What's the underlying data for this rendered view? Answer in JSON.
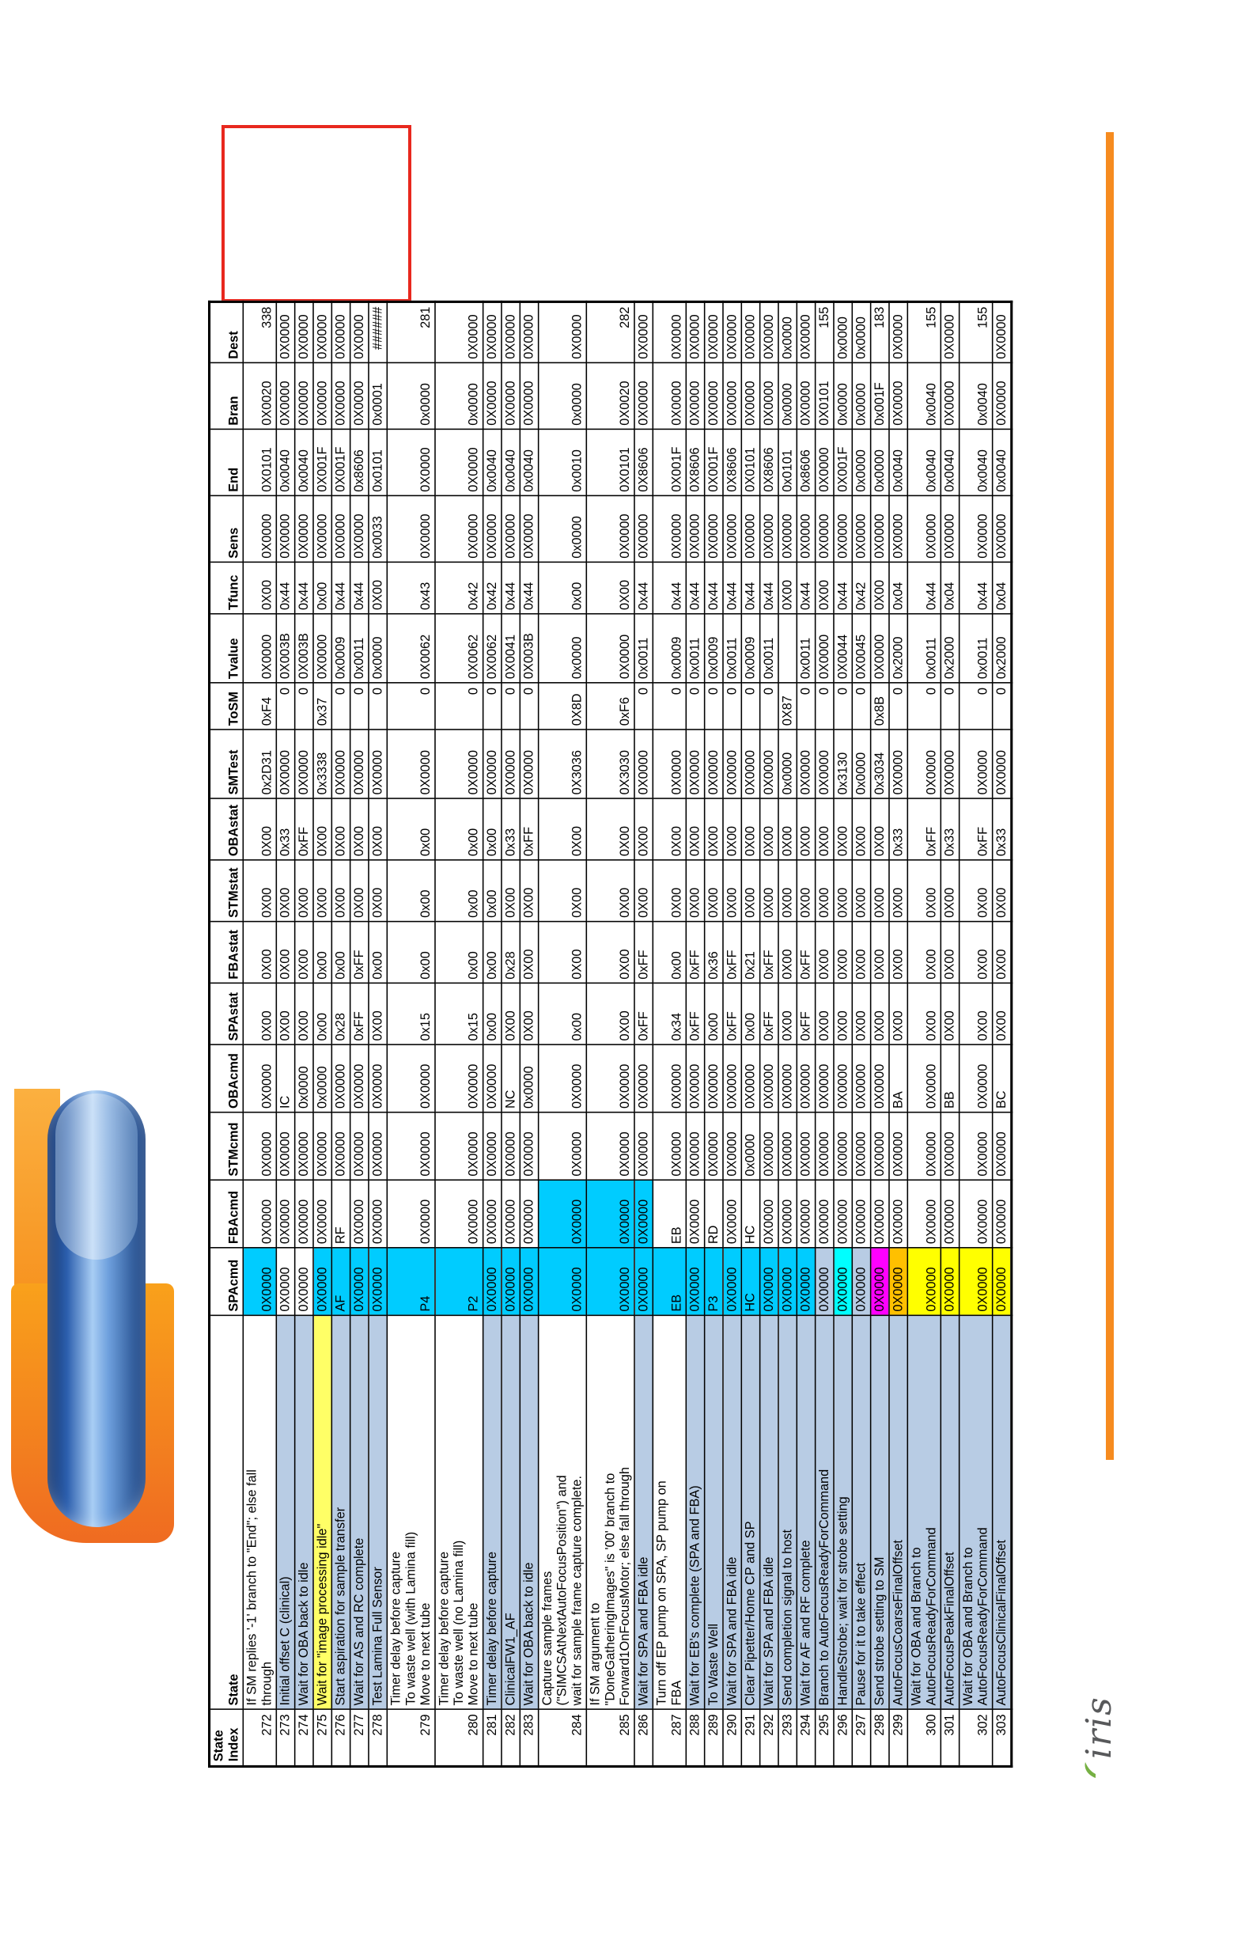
{
  "logo": {
    "wordmark": "iris"
  },
  "colors": {
    "white": "#ffffff",
    "lightblue": "#b8cce4",
    "cyan": "#00ccff",
    "aqua": "#00ffff",
    "magenta": "#ff00ff",
    "orange": "#ffc000",
    "yellow": "#ffff00",
    "paleyellow": "#ffff66",
    "accent_orange": "#f68b1f",
    "annotation_red": "#e8281e"
  },
  "table": {
    "headers": [
      "State\nIndex",
      "State",
      "SPAcmd",
      "FBAcmd",
      "STMcmd",
      "OBAcmd",
      "SPAstat",
      "FBAstat",
      "STMstat",
      "OBAstat",
      "SMTest",
      "ToSM",
      "Tvalue",
      "Tfunc",
      "Sens",
      "End",
      "Bran",
      "Dest"
    ],
    "rows": [
      {
        "index": "272",
        "state": "If SM replies '-1' branch to \"End\"; else fall\nthrough",
        "state_bg": "white",
        "spacmd_bg": "cyan",
        "fbacmd_bg": "white",
        "values": [
          "0X0000",
          "0X0000",
          "0X0000",
          "0X0000",
          "0X00",
          "0X00",
          "0X00",
          "0X00",
          "0x2D31",
          "0xF4",
          "0X0000",
          "0X00",
          "0X0000",
          "0X0101",
          "0X0020",
          "338"
        ]
      },
      {
        "index": "273",
        "state": "Initial offset C (clinical)",
        "state_bg": "lightblue",
        "spacmd_bg": "white",
        "fbacmd_bg": "white",
        "values": [
          "0X0000",
          "0X0000",
          "0X0000",
          "IC",
          "0X00",
          "0X00",
          "0X00",
          "0x33",
          "0X0000",
          "0",
          "0X003B",
          "0x44",
          "0X0000",
          "0x0040",
          "0X0000",
          "0X0000"
        ]
      },
      {
        "index": "274",
        "state": "Wait for OBA back to idle",
        "state_bg": "lightblue",
        "spacmd_bg": "white",
        "fbacmd_bg": "white",
        "values": [
          "0X0000",
          "0X0000",
          "0X0000",
          "0x0000",
          "0X00",
          "0X00",
          "0X00",
          "0xFF",
          "0X0000",
          "0",
          "0X003B",
          "0x44",
          "0X0000",
          "0x0040",
          "0X0000",
          "0X0000"
        ]
      },
      {
        "index": "275",
        "state": "Wait for \"image processing idle\"",
        "state_bg": "paleyellow",
        "spacmd_bg": "cyan",
        "fbacmd_bg": "white",
        "values": [
          "0X0000",
          "0X0000",
          "0X0000",
          "0x0000",
          "0x00",
          "0x00",
          "0X00",
          "0X00",
          "0x3338",
          "0x37",
          "0X0000",
          "0x00",
          "0X0000",
          "0X001F",
          "0X0000",
          "0X0000"
        ]
      },
      {
        "index": "276",
        "state": "Start aspiration for sample transfer",
        "state_bg": "lightblue",
        "spacmd_bg": "cyan",
        "fbacmd_bg": "white",
        "values": [
          "AF",
          "RF",
          "0X0000",
          "0X0000",
          "0x28",
          "0x00",
          "0X00",
          "0X00",
          "0X0000",
          "0",
          "0x0009",
          "0x44",
          "0X0000",
          "0X001F",
          "0X0000",
          "0X0000"
        ]
      },
      {
        "index": "277",
        "state": "Wait for AS and RC complete",
        "state_bg": "lightblue",
        "spacmd_bg": "cyan",
        "fbacmd_bg": "white",
        "values": [
          "0X0000",
          "0X0000",
          "0X0000",
          "0X0000",
          "0xFF",
          "0xFF",
          "0X00",
          "0X00",
          "0X0000",
          "0",
          "0x0011",
          "0x44",
          "0X0000",
          "0x8606",
          "0X0000",
          "0X0000"
        ]
      },
      {
        "index": "278",
        "state": "Test Lamina Full Sensor",
        "state_bg": "lightblue",
        "spacmd_bg": "cyan",
        "fbacmd_bg": "white",
        "values": [
          "0X0000",
          "0X0000",
          "0X0000",
          "0X0000",
          "0X00",
          "0x00",
          "0X00",
          "0X00",
          "0X0000",
          "0",
          "0x0000",
          "0X00",
          "0x0033",
          "0x0101",
          "0x0001",
          "######"
        ]
      },
      {
        "index": "279",
        "state": "Timer delay before capture\nTo waste well (with Lamina fill)\nMove to next tube",
        "state_bg": "white",
        "spacmd_bg": "cyan",
        "fbacmd_bg": "white",
        "values": [
          "P4",
          "0X0000",
          "0X0000",
          "0X0000",
          "0x15",
          "0x00",
          "0x00",
          "0x00",
          "0X0000",
          "0",
          "0X0062",
          "0x43",
          "0X0000",
          "0X0000",
          "0x0000",
          "281"
        ]
      },
      {
        "index": "280",
        "state": "Timer delay before capture\nTo waste well (no Lamina fill)\nMove to next tube",
        "state_bg": "white",
        "spacmd_bg": "cyan",
        "fbacmd_bg": "white",
        "values": [
          "P2",
          "0X0000",
          "0X0000",
          "0X0000",
          "0x15",
          "0x00",
          "0x00",
          "0x00",
          "0X0000",
          "0",
          "0X0062",
          "0x42",
          "0X0000",
          "0X0000",
          "0x0000",
          "0X0000"
        ]
      },
      {
        "index": "281",
        "state": "Timer delay before capture",
        "state_bg": "lightblue",
        "spacmd_bg": "cyan",
        "fbacmd_bg": "white",
        "values": [
          "0X0000",
          "0X0000",
          "0X0000",
          "0X0000",
          "0x00",
          "0x00",
          "0x00",
          "0x00",
          "0X0000",
          "0",
          "0X0062",
          "0x42",
          "0X0000",
          "0x0040",
          "0X0000",
          "0X0000"
        ]
      },
      {
        "index": "282",
        "state": "ClinicalFW1_AF",
        "state_bg": "lightblue",
        "spacmd_bg": "cyan",
        "fbacmd_bg": "white",
        "values": [
          "0X0000",
          "0X0000",
          "0X0000",
          "NC",
          "0X00",
          "0x28",
          "0X00",
          "0x33",
          "0X0000",
          "0",
          "0X0041",
          "0x44",
          "0X0000",
          "0x0040",
          "0X0000",
          "0X0000"
        ]
      },
      {
        "index": "283",
        "state": "Wait for OBA back to idle",
        "state_bg": "lightblue",
        "spacmd_bg": "cyan",
        "fbacmd_bg": "white",
        "values": [
          "0X0000",
          "0X0000",
          "0X0000",
          "0x0000",
          "0X00",
          "0X00",
          "0X00",
          "0xFF",
          "0X0000",
          "0",
          "0X003B",
          "0x44",
          "0X0000",
          "0x0040",
          "0X0000",
          "0X0000"
        ]
      },
      {
        "index": "284",
        "state": "Capture sample frames\n(\"SIMCSAtNextAutoFocusPosition\") and\nwait for sample frame capture complete.",
        "state_bg": "white",
        "spacmd_bg": "cyan",
        "fbacmd_bg": "cyan",
        "values": [
          "0X0000",
          "0X0000",
          "0X0000",
          "0X0000",
          "0x00",
          "0X00",
          "0X00",
          "0X00",
          "0X3036",
          "0X8D",
          "0x0000",
          "0x00",
          "0x0000",
          "0x0010",
          "0x0000",
          "0X0000"
        ]
      },
      {
        "index": "285",
        "state": "If SM argument to\n\"DoneGatheringImages\" is '00' branch to\nForward1OnFocusMotor; else fall through",
        "state_bg": "white",
        "spacmd_bg": "cyan",
        "fbacmd_bg": "cyan",
        "values": [
          "0X0000",
          "0X0000",
          "0X0000",
          "0X0000",
          "0X00",
          "0X00",
          "0X00",
          "0X00",
          "0X3030",
          "0xF6",
          "0X0000",
          "0X00",
          "0X0000",
          "0X0101",
          "0X0020",
          "282"
        ]
      },
      {
        "index": "286",
        "state": "Wait for SPA and FBA idle",
        "state_bg": "lightblue",
        "spacmd_bg": "cyan",
        "fbacmd_bg": "cyan",
        "values": [
          "0X0000",
          "0X0000",
          "0X0000",
          "0X0000",
          "0xFF",
          "0xFF",
          "0X00",
          "0X00",
          "0X0000",
          "0",
          "0x0011",
          "0x44",
          "0X0000",
          "0X8606",
          "0X0000",
          "0X0000"
        ]
      },
      {
        "index": "287",
        "state": "Turn off EP pump on SPA, SP pump on\nFBA",
        "state_bg": "white",
        "spacmd_bg": "cyan",
        "fbacmd_bg": "white",
        "values": [
          "EB",
          "EB",
          "0X0000",
          "0X0000",
          "0x34",
          "0x00",
          "0X00",
          "0X00",
          "0X0000",
          "0",
          "0x0009",
          "0x44",
          "0X0000",
          "0X001F",
          "0X0000",
          "0X0000"
        ]
      },
      {
        "index": "288",
        "state": "Wait for EB's complete (SPA and FBA)",
        "state_bg": "lightblue",
        "spacmd_bg": "cyan",
        "fbacmd_bg": "white",
        "values": [
          "0X0000",
          "0X0000",
          "0X0000",
          "0X0000",
          "0xFF",
          "0xFF",
          "0X00",
          "0X00",
          "0X0000",
          "0",
          "0x0011",
          "0x44",
          "0X0000",
          "0X8606",
          "0X0000",
          "0X0000"
        ]
      },
      {
        "index": "289",
        "state": "To Waste Well",
        "state_bg": "lightblue",
        "spacmd_bg": "cyan",
        "fbacmd_bg": "white",
        "values": [
          "P3",
          "RD",
          "0X0000",
          "0X0000",
          "0x00",
          "0x36",
          "0X00",
          "0X00",
          "0X0000",
          "0",
          "0x0009",
          "0x44",
          "0X0000",
          "0X001F",
          "0X0000",
          "0X0000"
        ]
      },
      {
        "index": "290",
        "state": "Wait for SPA and FBA idle",
        "state_bg": "lightblue",
        "spacmd_bg": "cyan",
        "fbacmd_bg": "white",
        "values": [
          "0X0000",
          "0X0000",
          "0X0000",
          "0X0000",
          "0xFF",
          "0xFF",
          "0X00",
          "0X00",
          "0X0000",
          "0",
          "0x0011",
          "0x44",
          "0X0000",
          "0X8606",
          "0X0000",
          "0X0000"
        ]
      },
      {
        "index": "291",
        "state": "Clear Pipetter/Home CP and SP",
        "state_bg": "lightblue",
        "spacmd_bg": "cyan",
        "fbacmd_bg": "white",
        "values": [
          "HC",
          "HC",
          "0x0000",
          "0X0000",
          "0x00",
          "0x21",
          "0X00",
          "0X00",
          "0X0000",
          "0",
          "0x0009",
          "0x44",
          "0X0000",
          "0X0101",
          "0X0000",
          "0X0000"
        ]
      },
      {
        "index": "292",
        "state": "Wait for SPA and FBA idle",
        "state_bg": "lightblue",
        "spacmd_bg": "cyan",
        "fbacmd_bg": "white",
        "values": [
          "0X0000",
          "0X0000",
          "0X0000",
          "0X0000",
          "0xFF",
          "0xFF",
          "0X00",
          "0X00",
          "0X0000",
          "0",
          "0x0011",
          "0x44",
          "0X0000",
          "0X8606",
          "0X0000",
          "0X0000"
        ]
      },
      {
        "index": "293",
        "state": "Send completion signal to host",
        "state_bg": "lightblue",
        "spacmd_bg": "cyan",
        "fbacmd_bg": "white",
        "values": [
          "0X0000",
          "0X0000",
          "0X0000",
          "0X0000",
          "0X00",
          "0X00",
          "0X00",
          "0X00",
          "0x0000",
          "0X87",
          "",
          "0X00",
          "0X0000",
          "0x0101",
          "0x0000",
          "0x0000"
        ]
      },
      {
        "index": "294",
        "state": "Wait for AF and RF complete",
        "state_bg": "lightblue",
        "spacmd_bg": "cyan",
        "fbacmd_bg": "white",
        "values": [
          "0X0000",
          "0X0000",
          "0X0000",
          "0X0000",
          "0xFF",
          "0xFF",
          "0X00",
          "0X00",
          "0X0000",
          "0",
          "0x0011",
          "0x44",
          "0X0000",
          "0x8606",
          "0X0000",
          "0X0000"
        ]
      },
      {
        "index": "295",
        "state": "Branch to AutoFocusReadyForCommand",
        "state_bg": "lightblue",
        "spacmd_bg": "lightblue",
        "fbacmd_bg": "white",
        "values": [
          "0X0000",
          "0X0000",
          "0X0000",
          "0X0000",
          "0X00",
          "0X00",
          "0X00",
          "0X00",
          "0X0000",
          "0",
          "0X0000",
          "0X00",
          "0X0000",
          "0X0000",
          "0X0101",
          "155"
        ]
      },
      {
        "index": "296",
        "state": "HandleStrobe; wait for strobe setting",
        "state_bg": "lightblue",
        "spacmd_bg": "aqua",
        "fbacmd_bg": "white",
        "values": [
          "0X0000",
          "0X0000",
          "0X0000",
          "0X0000",
          "0X00",
          "0X00",
          "0X00",
          "0X00",
          "0x3130",
          "0",
          "0X0044",
          "0x44",
          "0X0000",
          "0X001F",
          "0x0000",
          "0x0000"
        ]
      },
      {
        "index": "297",
        "state": "Pause for it to take effect",
        "state_bg": "lightblue",
        "spacmd_bg": "lightblue",
        "fbacmd_bg": "white",
        "values": [
          "0X0000",
          "0X0000",
          "0X0000",
          "0X0000",
          "0X00",
          "0X00",
          "0X00",
          "0X00",
          "0x0000",
          "0",
          "0X0045",
          "0x42",
          "0X0000",
          "0x0000",
          "0x0000",
          "0x0000"
        ]
      },
      {
        "index": "298",
        "state": "Send strobe setting to SM",
        "state_bg": "lightblue",
        "spacmd_bg": "magenta",
        "fbacmd_bg": "white",
        "values": [
          "0X0000",
          "0X0000",
          "0X0000",
          "0X0000",
          "0X00",
          "0X00",
          "0X00",
          "0X00",
          "0x3034",
          "0x8B",
          "0X0000",
          "0X00",
          "0X0000",
          "0x0000",
          "0x001F",
          "183"
        ]
      },
      {
        "index": "299",
        "state": "AutoFocusCoarseFinalOffset",
        "state_bg": "lightblue",
        "spacmd_bg": "orange",
        "fbacmd_bg": "white",
        "values": [
          "0X0000",
          "0X0000",
          "0X0000",
          "BA",
          "0X00",
          "0X00",
          "0X00",
          "0x33",
          "0X0000",
          "0",
          "0x2000",
          "0x04",
          "0X0000",
          "0x0040",
          "0X0000",
          "0X0000"
        ]
      },
      {
        "index": "300",
        "state": "Wait for OBA and Branch to\nAutoFocusReadyForCommand",
        "state_bg": "lightblue",
        "spacmd_bg": "yellow",
        "fbacmd_bg": "white",
        "values": [
          "0X0000",
          "0X0000",
          "0X0000",
          "0X0000",
          "0X00",
          "0X00",
          "0X00",
          "0xFF",
          "0X0000",
          "0",
          "0x0011",
          "0x44",
          "0X0000",
          "0x0040",
          "0x0040",
          "155"
        ]
      },
      {
        "index": "301",
        "state": "AutoFocusPeakFinalOffset",
        "state_bg": "lightblue",
        "spacmd_bg": "yellow",
        "fbacmd_bg": "white",
        "values": [
          "0X0000",
          "0X0000",
          "0X0000",
          "BB",
          "0X00",
          "0X00",
          "0X00",
          "0x33",
          "0X0000",
          "0",
          "0x2000",
          "0x04",
          "0X0000",
          "0x0040",
          "0X0000",
          "0X0000"
        ]
      },
      {
        "index": "302",
        "state": "Wait for OBA and Branch to\nAutoFocusReadyForCommand",
        "state_bg": "lightblue",
        "spacmd_bg": "yellow",
        "fbacmd_bg": "white",
        "values": [
          "0X0000",
          "0X0000",
          "0X0000",
          "0X0000",
          "0X00",
          "0X00",
          "0X00",
          "0xFF",
          "0X0000",
          "0",
          "0x0011",
          "0x44",
          "0X0000",
          "0x0040",
          "0x0040",
          "155"
        ]
      },
      {
        "index": "303",
        "state": "AutoFocusClinicalFinalOffset",
        "state_bg": "lightblue",
        "spacmd_bg": "yellow",
        "fbacmd_bg": "white",
        "values": [
          "0X0000",
          "0X0000",
          "0X0000",
          "BC",
          "0X00",
          "0X00",
          "0X00",
          "0x33",
          "0X0000",
          "0",
          "0x2000",
          "0x04",
          "0X0000",
          "0x0040",
          "0X0000",
          "0X0000"
        ]
      }
    ]
  }
}
